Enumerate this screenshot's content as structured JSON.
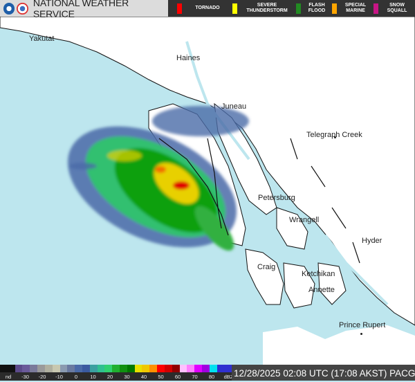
{
  "header": {
    "title": "NATIONAL WEATHER SERVICE",
    "logos": [
      "noaa-logo",
      "nws-logo"
    ]
  },
  "warnings": [
    {
      "label": "TORNADO",
      "color": "#ff0000"
    },
    {
      "label": "SEVERE\nTHUNDERSTORM",
      "color": "#ffff00"
    },
    {
      "label": "FLASH\nFLOOD",
      "color": "#228b22"
    },
    {
      "label": "SPECIAL\nMARINE",
      "color": "#ffa500"
    },
    {
      "label": "SNOW\nSQUALL",
      "color": "#c71585"
    }
  ],
  "map": {
    "colors": {
      "water": "#bde6ee",
      "land": "#ffffff",
      "coast": "#111111"
    },
    "cities": [
      "Yakutat",
      "Haines",
      "Juneau",
      "Telegraph Creek",
      "Petersburg",
      "Wrangell",
      "Hyder",
      "Craig",
      "Ketchikan",
      "Annette",
      "Prince Rupert"
    ]
  },
  "colorbar": {
    "labels": [
      "nd",
      "-30",
      "-20",
      "-10",
      "0",
      "10",
      "20",
      "30",
      "40",
      "50",
      "60",
      "70",
      "80",
      "dBZ"
    ],
    "colors": [
      "#111111",
      "#111111",
      "#5c4a8a",
      "#6a5a9a",
      "#7a7a9a",
      "#9a9a9a",
      "#b0b0a0",
      "#c8c8b0",
      "#8a9ab0",
      "#6a7aa0",
      "#4a6aa8",
      "#3a5aa0",
      "#3aa0a0",
      "#30c090",
      "#30d070",
      "#20b030",
      "#109010",
      "#007800",
      "#e8e000",
      "#f0c800",
      "#ff9000",
      "#ff0000",
      "#d00000",
      "#900000",
      "#ffc0ff",
      "#ff80ff",
      "#e000ff",
      "#a000e0",
      "#00e0f0",
      "#3030d0",
      "#3030d0"
    ]
  },
  "timestamp": "12/28/2025 02:08 UTC (17:08 AKST) PACG"
}
